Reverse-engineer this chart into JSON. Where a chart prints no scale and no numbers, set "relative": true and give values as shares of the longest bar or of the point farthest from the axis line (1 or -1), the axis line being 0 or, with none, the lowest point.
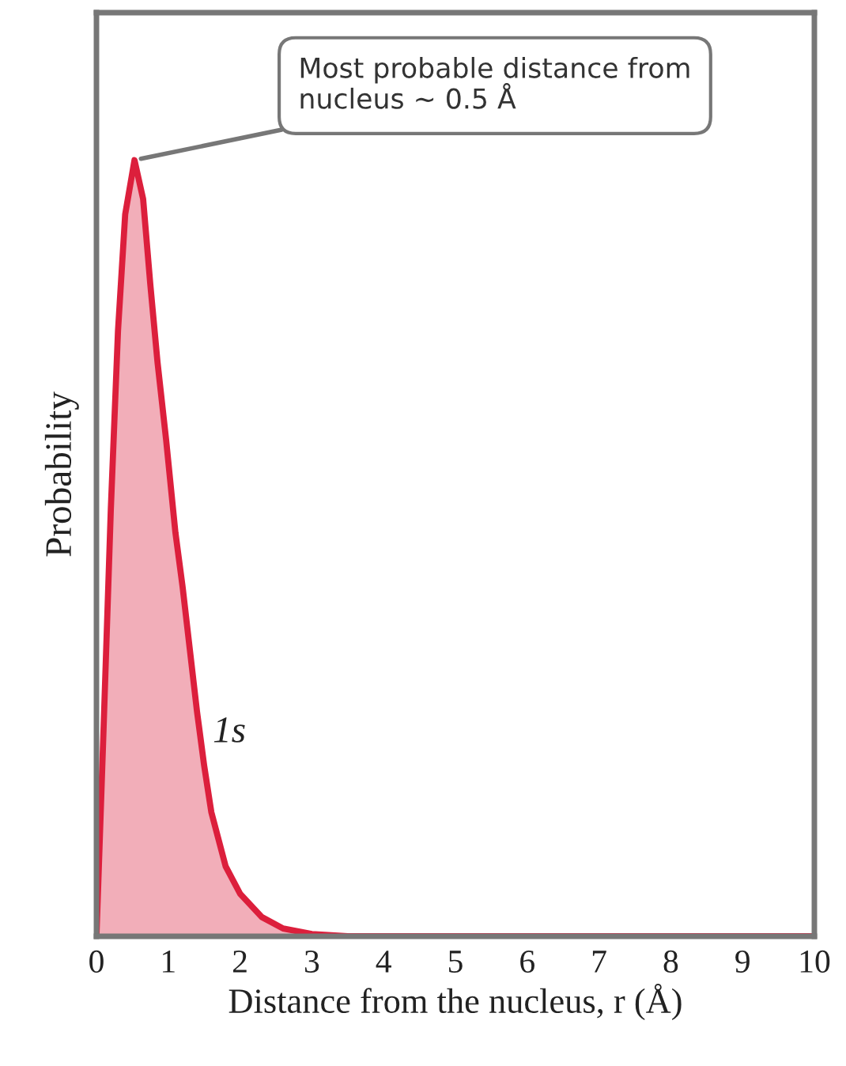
{
  "chart_data": {
    "type": "area",
    "relative": true,
    "xlabel": "Distance from the nucleus, r (Å)",
    "ylabel": "Probability",
    "x": [
      0,
      0.1,
      0.2,
      0.3,
      0.4,
      0.53,
      0.65,
      0.75,
      0.85,
      0.97,
      1.1,
      1.2,
      1.3,
      1.4,
      1.5,
      1.6,
      1.8,
      2.0,
      2.3,
      2.6,
      3.0,
      3.5,
      10
    ],
    "series": [
      {
        "name": "1s",
        "color": "#dc1f3c",
        "values": [
          0,
          0.27,
          0.55,
          0.78,
          0.93,
          1.0,
          0.95,
          0.84,
          0.74,
          0.64,
          0.52,
          0.45,
          0.37,
          0.29,
          0.22,
          0.16,
          0.09,
          0.055,
          0.025,
          0.01,
          0.003,
          0,
          0
        ]
      }
    ],
    "xlim": [
      0,
      10
    ],
    "xticks": [
      0,
      1,
      2,
      3,
      4,
      5,
      6,
      7,
      8,
      9,
      10
    ],
    "tick_labels": "x",
    "grid": false,
    "legend": false,
    "annotations": [
      {
        "text": "Most probable distance from\nnucleus ~ 0.5 Å",
        "x": 0.53,
        "y": 1.0
      }
    ]
  }
}
